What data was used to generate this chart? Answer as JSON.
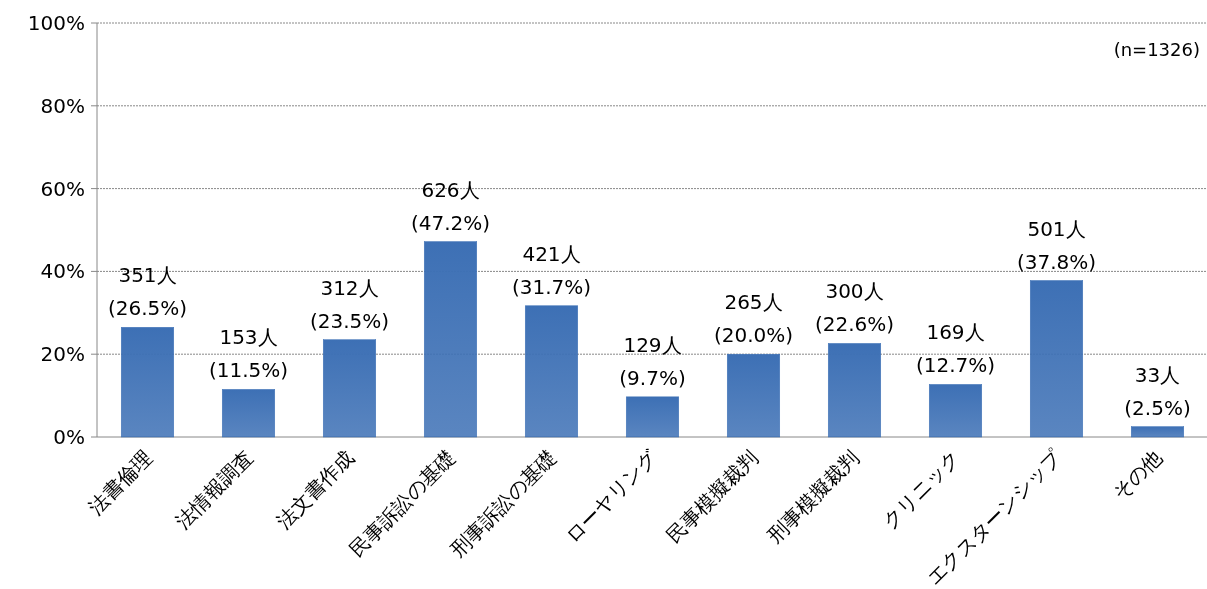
{
  "chart_data": {
    "type": "bar",
    "categories": [
      "法書倫理",
      "法情報調査",
      "法文書作成",
      "民事訴訟の基礎",
      "刑事訴訟の基礎",
      "ローヤリング",
      "民事模擬裁判",
      "刑事模擬裁判",
      "クリニック",
      "エクスターンシップ",
      "その他"
    ],
    "values": [
      26.5,
      11.5,
      23.5,
      47.2,
      31.7,
      9.7,
      20.0,
      22.6,
      12.7,
      37.8,
      2.5
    ],
    "value_labels": [
      "351人\n(26.5%)",
      "153人\n(11.5%)",
      "312人\n(23.5%)",
      "626人\n(47.2%)",
      "421人\n(31.7%)",
      "129人\n(9.7%)",
      "265人\n(20.0%)",
      "300人\n(22.6%)",
      "169人\n(12.7%)",
      "501人\n(37.8%)",
      "33人\n(2.5%)"
    ],
    "color": "#3d70b5",
    "ylim": [
      0,
      100
    ],
    "yticks": [
      {
        "value": 0,
        "label": "0%"
      },
      {
        "value": 20,
        "label": "20%"
      },
      {
        "value": 40,
        "label": "40%"
      },
      {
        "value": 60,
        "label": "60%"
      },
      {
        "value": 80,
        "label": "80%"
      },
      {
        "value": 100,
        "label": "100%"
      }
    ],
    "grid": "y",
    "annotations": [
      "(n=1326)"
    ]
  }
}
